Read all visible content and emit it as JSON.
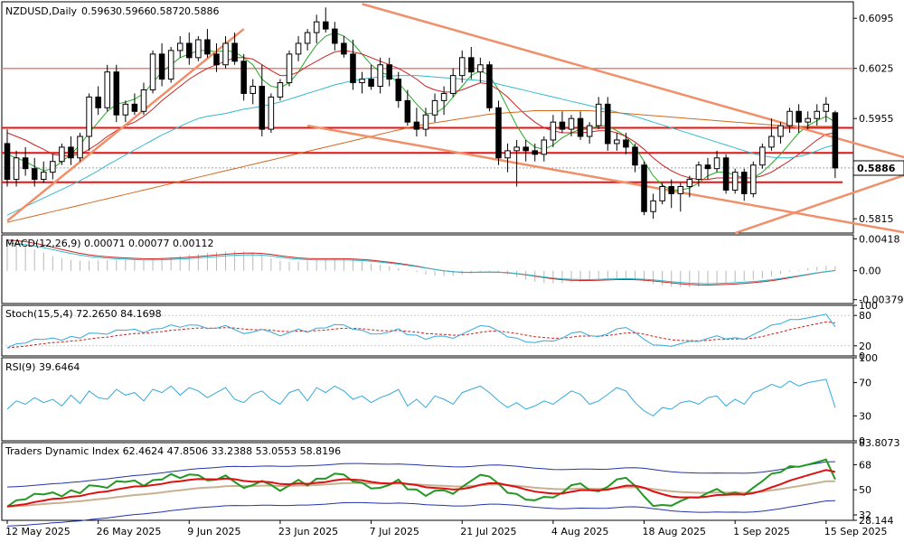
{
  "chart_data": {
    "type": "candlestick",
    "symbol_label": "NZDUSD,Daily",
    "ohlc_header": [
      "0.5963",
      "0.5966",
      "0.5872",
      "0.5886"
    ],
    "current_price": "0.5886",
    "main": {
      "y_ticks": [
        "0.6095",
        "0.6025",
        "0.5955",
        "0.5815"
      ],
      "y_tick_values": [
        0.6095,
        0.6025,
        0.5955,
        0.5815
      ],
      "ylim": [
        0.5795,
        0.6118
      ],
      "horizontal_levels": [
        0.6025,
        0.5942,
        0.5907,
        0.5866
      ],
      "candles": [
        [
          0.592,
          0.594,
          0.586,
          0.587
        ],
        [
          0.587,
          0.591,
          0.586,
          0.59
        ],
        [
          0.59,
          0.5915,
          0.5875,
          0.5885
        ],
        [
          0.5885,
          0.59,
          0.586,
          0.587
        ],
        [
          0.587,
          0.5895,
          0.5865,
          0.588
        ],
        [
          0.588,
          0.5905,
          0.587,
          0.5895
        ],
        [
          0.5895,
          0.592,
          0.589,
          0.5915
        ],
        [
          0.5915,
          0.593,
          0.589,
          0.59
        ],
        [
          0.59,
          0.5935,
          0.5895,
          0.593
        ],
        [
          0.593,
          0.599,
          0.591,
          0.5985
        ],
        [
          0.5985,
          0.6,
          0.596,
          0.597
        ],
        [
          0.597,
          0.603,
          0.5965,
          0.602
        ],
        [
          0.602,
          0.603,
          0.595,
          0.596
        ],
        [
          0.596,
          0.598,
          0.595,
          0.5975
        ],
        [
          0.5975,
          0.599,
          0.596,
          0.5965
        ],
        [
          0.5965,
          0.6005,
          0.596,
          0.5995
        ],
        [
          0.5995,
          0.605,
          0.599,
          0.6045
        ],
        [
          0.6045,
          0.606,
          0.6,
          0.601
        ],
        [
          0.601,
          0.6055,
          0.6005,
          0.605
        ],
        [
          0.605,
          0.607,
          0.604,
          0.606
        ],
        [
          0.606,
          0.6075,
          0.603,
          0.604
        ],
        [
          0.604,
          0.607,
          0.6035,
          0.6065
        ],
        [
          0.6065,
          0.608,
          0.604,
          0.6045
        ],
        [
          0.6045,
          0.606,
          0.602,
          0.603
        ],
        [
          0.603,
          0.607,
          0.6025,
          0.606
        ],
        [
          0.606,
          0.6075,
          0.603,
          0.6035
        ],
        [
          0.6035,
          0.6045,
          0.598,
          0.599
        ],
        [
          0.599,
          0.601,
          0.5975,
          0.6
        ],
        [
          0.6,
          0.603,
          0.593,
          0.594
        ],
        [
          0.594,
          0.599,
          0.5935,
          0.5985
        ],
        [
          0.5985,
          0.601,
          0.598,
          0.6005
        ],
        [
          0.6005,
          0.605,
          0.6,
          0.6045
        ],
        [
          0.6045,
          0.607,
          0.6035,
          0.606
        ],
        [
          0.606,
          0.608,
          0.605,
          0.6075
        ],
        [
          0.6075,
          0.61,
          0.606,
          0.609
        ],
        [
          0.609,
          0.611,
          0.6075,
          0.608
        ],
        [
          0.608,
          0.609,
          0.605,
          0.606
        ],
        [
          0.606,
          0.607,
          0.604,
          0.6045
        ],
        [
          0.6045,
          0.6065,
          0.5995,
          0.6005
        ],
        [
          0.6005,
          0.602,
          0.599,
          0.601
        ],
        [
          0.601,
          0.603,
          0.5995,
          0.6
        ],
        [
          0.6,
          0.604,
          0.599,
          0.603
        ],
        [
          0.603,
          0.604,
          0.6,
          0.601
        ],
        [
          0.601,
          0.602,
          0.597,
          0.598
        ],
        [
          0.598,
          0.5995,
          0.5945,
          0.595
        ],
        [
          0.595,
          0.597,
          0.593,
          0.594
        ],
        [
          0.594,
          0.597,
          0.593,
          0.596
        ],
        [
          0.596,
          0.599,
          0.595,
          0.598
        ],
        [
          0.598,
          0.6,
          0.596,
          0.599
        ],
        [
          0.599,
          0.6025,
          0.5985,
          0.6015
        ],
        [
          0.6015,
          0.605,
          0.6005,
          0.604
        ],
        [
          0.604,
          0.6055,
          0.601,
          0.602
        ],
        [
          0.602,
          0.604,
          0.6005,
          0.603
        ],
        [
          0.603,
          0.6035,
          0.5965,
          0.597
        ],
        [
          0.597,
          0.598,
          0.589,
          0.59
        ],
        [
          0.59,
          0.592,
          0.588,
          0.591
        ],
        [
          0.591,
          0.5925,
          0.586,
          0.5915
        ],
        [
          0.5915,
          0.5925,
          0.5895,
          0.591
        ],
        [
          0.591,
          0.592,
          0.5895,
          0.5905
        ],
        [
          0.5905,
          0.593,
          0.5895,
          0.5925
        ],
        [
          0.5925,
          0.596,
          0.5915,
          0.595
        ],
        [
          0.595,
          0.5965,
          0.5935,
          0.594
        ],
        [
          0.594,
          0.596,
          0.593,
          0.5955
        ],
        [
          0.5955,
          0.5965,
          0.5925,
          0.593
        ],
        [
          0.593,
          0.595,
          0.592,
          0.5945
        ],
        [
          0.5945,
          0.5985,
          0.594,
          0.5975
        ],
        [
          0.5975,
          0.5985,
          0.591,
          0.592
        ],
        [
          0.592,
          0.5935,
          0.591,
          0.5925
        ],
        [
          0.5925,
          0.5935,
          0.5905,
          0.5915
        ],
        [
          0.5915,
          0.592,
          0.588,
          0.589
        ],
        [
          0.589,
          0.5895,
          0.582,
          0.5825
        ],
        [
          0.5825,
          0.585,
          0.5815,
          0.584
        ],
        [
          0.584,
          0.5865,
          0.5835,
          0.586
        ],
        [
          0.586,
          0.587,
          0.583,
          0.585
        ],
        [
          0.585,
          0.5865,
          0.5825,
          0.586
        ],
        [
          0.586,
          0.5875,
          0.5845,
          0.587
        ],
        [
          0.587,
          0.5895,
          0.586,
          0.589
        ],
        [
          0.589,
          0.59,
          0.587,
          0.5885
        ],
        [
          0.5885,
          0.591,
          0.588,
          0.59
        ],
        [
          0.59,
          0.5905,
          0.585,
          0.5855
        ],
        [
          0.5855,
          0.5885,
          0.585,
          0.588
        ],
        [
          0.588,
          0.5885,
          0.584,
          0.585
        ],
        [
          0.585,
          0.5895,
          0.5845,
          0.589
        ],
        [
          0.589,
          0.592,
          0.5885,
          0.5915
        ],
        [
          0.5915,
          0.5955,
          0.591,
          0.593
        ],
        [
          0.593,
          0.595,
          0.592,
          0.5945
        ],
        [
          0.5945,
          0.597,
          0.5935,
          0.5965
        ],
        [
          0.5965,
          0.5975,
          0.5935,
          0.595
        ],
        [
          0.595,
          0.5965,
          0.594,
          0.5955
        ],
        [
          0.5955,
          0.5975,
          0.5945,
          0.5965
        ],
        [
          0.5965,
          0.5985,
          0.595,
          0.5975
        ],
        [
          0.5963,
          0.5966,
          0.5872,
          0.5886
        ]
      ],
      "moving_averages": [
        {
          "color": "#22aa22",
          "values": [
            0.5905,
            0.59,
            0.5895,
            0.5888,
            0.5882,
            0.5885,
            0.5895,
            0.5905,
            0.5918,
            0.5935,
            0.595,
            0.5965,
            0.5975,
            0.5978,
            0.5982,
            0.599,
            0.6005,
            0.602,
            0.603,
            0.604,
            0.6045,
            0.605,
            0.605,
            0.6048,
            0.605,
            0.6048,
            0.604,
            0.603,
            0.601,
            0.6,
            0.5998,
            0.6005,
            0.602,
            0.604,
            0.6058,
            0.607,
            0.6075,
            0.607,
            0.606,
            0.6045,
            0.603,
            0.602,
            0.6015,
            0.6005,
            0.599,
            0.5975,
            0.5962,
            0.5962,
            0.597,
            0.5985,
            0.6,
            0.6015,
            0.6022,
            0.6015,
            0.5995,
            0.597,
            0.5945,
            0.5925,
            0.5915,
            0.5912,
            0.5918,
            0.5928,
            0.5935,
            0.594,
            0.594,
            0.5945,
            0.5945,
            0.5938,
            0.593,
            0.5915,
            0.5895,
            0.5875,
            0.5862,
            0.5855,
            0.5855,
            0.5858,
            0.5865,
            0.5875,
            0.588,
            0.588,
            0.5876,
            0.5872,
            0.5872,
            0.588,
            0.5892,
            0.5905,
            0.592,
            0.5935,
            0.5945,
            0.5952,
            0.5958,
            0.595
          ]
        },
        {
          "color": "#cc2222",
          "values": [
            0.5935,
            0.593,
            0.5925,
            0.5918,
            0.5912,
            0.5905,
            0.5903,
            0.5903,
            0.5905,
            0.5912,
            0.592,
            0.593,
            0.5938,
            0.5945,
            0.595,
            0.5958,
            0.5968,
            0.598,
            0.599,
            0.6,
            0.601,
            0.6018,
            0.6025,
            0.603,
            0.6035,
            0.604,
            0.604,
            0.6038,
            0.603,
            0.6022,
            0.6015,
            0.6015,
            0.602,
            0.6028,
            0.6035,
            0.6042,
            0.6048,
            0.605,
            0.6048,
            0.6045,
            0.604,
            0.6035,
            0.603,
            0.6025,
            0.6018,
            0.601,
            0.6,
            0.5995,
            0.5992,
            0.5992,
            0.5995,
            0.6,
            0.6005,
            0.6003,
            0.5995,
            0.5985,
            0.5972,
            0.596,
            0.595,
            0.5942,
            0.5938,
            0.5935,
            0.5935,
            0.5935,
            0.5936,
            0.5938,
            0.5938,
            0.5935,
            0.593,
            0.5922,
            0.5912,
            0.59,
            0.589,
            0.5882,
            0.5876,
            0.5872,
            0.587,
            0.587,
            0.5872,
            0.5872,
            0.5872,
            0.5872,
            0.5872,
            0.5875,
            0.588,
            0.5888,
            0.5896,
            0.5905,
            0.5915,
            0.5925,
            0.5933,
            0.5935
          ]
        },
        {
          "color": "#33bbcc",
          "values": [
            0.582,
            0.5826,
            0.5832,
            0.5838,
            0.5844,
            0.585,
            0.5856,
            0.5862,
            0.5868,
            0.5875,
            0.5882,
            0.589,
            0.5897,
            0.5904,
            0.5911,
            0.5918,
            0.5925,
            0.5932,
            0.5938,
            0.5944,
            0.595,
            0.5955,
            0.5958,
            0.596,
            0.5962,
            0.5965,
            0.5968,
            0.597,
            0.5972,
            0.5975,
            0.5978,
            0.5982,
            0.5986,
            0.599,
            0.5994,
            0.5998,
            0.6002,
            0.6005,
            0.6008,
            0.601,
            0.6012,
            0.6013,
            0.6014,
            0.6015,
            0.6015,
            0.6015,
            0.6014,
            0.6013,
            0.6012,
            0.6011,
            0.601,
            0.6009,
            0.6008,
            0.6006,
            0.6003,
            0.6,
            0.5997,
            0.5994,
            0.5991,
            0.5988,
            0.5985,
            0.5982,
            0.5979,
            0.5976,
            0.5973,
            0.597,
            0.5967,
            0.5964,
            0.5961,
            0.5958,
            0.5954,
            0.595,
            0.5946,
            0.5942,
            0.5938,
            0.5934,
            0.593,
            0.5926,
            0.5922,
            0.5918,
            0.5914,
            0.591,
            0.5906,
            0.5903,
            0.5901,
            0.59,
            0.59,
            0.5902,
            0.5905,
            0.591,
            0.5915,
            0.5918
          ]
        },
        {
          "color": "#d2691e",
          "values": [
            0.581,
            0.5813,
            0.5816,
            0.5819,
            0.5822,
            0.5825,
            0.5828,
            0.5831,
            0.5834,
            0.5837,
            0.584,
            0.5843,
            0.5846,
            0.5849,
            0.5852,
            0.5855,
            0.5858,
            0.5861,
            0.5864,
            0.5867,
            0.587,
            0.5873,
            0.5876,
            0.5879,
            0.5882,
            0.5885,
            0.5888,
            0.5891,
            0.5894,
            0.5897,
            0.59,
            0.5903,
            0.5906,
            0.5909,
            0.5912,
            0.5915,
            0.5918,
            0.5921,
            0.5924,
            0.5927,
            0.593,
            0.5933,
            0.5936,
            0.5939,
            0.5942,
            0.5945,
            0.5947,
            0.5949,
            0.5951,
            0.5953,
            0.5955,
            0.5957,
            0.5959,
            0.5961,
            0.5962,
            0.5963,
            0.5964,
            0.5965,
            0.5966,
            0.5966,
            0.5966,
            0.5966,
            0.5966,
            0.5966,
            0.5966,
            0.5965,
            0.5964,
            0.5963,
            0.5962,
            0.5961,
            0.596,
            0.5959,
            0.5958,
            0.5957,
            0.5956,
            0.5955,
            0.5954,
            0.5953,
            0.5952,
            0.5951,
            0.595,
            0.5949,
            0.5948,
            0.5947,
            0.5946,
            0.5945,
            0.5944,
            0.5944,
            0.5944,
            0.5944,
            0.5944,
            0.5944
          ]
        }
      ],
      "trendlines": [
        {
          "from": [
            0,
            0.5812
          ],
          "to": [
            26,
            0.608
          ]
        },
        {
          "from": [
            39,
            0.6115
          ],
          "to": [
            103,
            0.5885
          ]
        },
        {
          "from": [
            33,
            0.5945
          ],
          "to": [
            99,
            0.5795
          ]
        },
        {
          "from": [
            80,
            0.5795
          ],
          "to": [
            103,
            0.5895
          ]
        }
      ]
    },
    "macd": {
      "label": "MACD(12,26,9) 0.00071 0.00077 0.00112",
      "y_ticks": [
        "0.00418",
        "0.00",
        "-0.00379"
      ],
      "y_tick_values": [
        0.00418,
        0.0,
        -0.00379
      ],
      "ylim": [
        -0.0043,
        0.0047
      ]
    },
    "stoch": {
      "label": "Stoch(15,5,4) 72.2650 84.1698",
      "y_ticks": [
        "100",
        "80",
        "20",
        "0"
      ],
      "y_tick_values": [
        100,
        80,
        20,
        0
      ],
      "ylim": [
        0,
        100
      ]
    },
    "rsi": {
      "label": "RSI(9) 39.6464",
      "y_ticks": [
        "100",
        "70",
        "30",
        "0"
      ],
      "y_tick_values": [
        100,
        70,
        30,
        0
      ],
      "ylim": [
        0,
        100
      ],
      "values": [
        38,
        48,
        44,
        52,
        46,
        50,
        42,
        55,
        45,
        60,
        52,
        50,
        62,
        55,
        58,
        48,
        62,
        58,
        66,
        55,
        64,
        60,
        52,
        58,
        64,
        50,
        46,
        56,
        60,
        50,
        44,
        58,
        62,
        48,
        64,
        58,
        66,
        60,
        50,
        54,
        46,
        52,
        56,
        62,
        42,
        50,
        40,
        54,
        50,
        44,
        58,
        62,
        66,
        58,
        48,
        40,
        46,
        38,
        42,
        48,
        44,
        52,
        60,
        56,
        44,
        48,
        56,
        64,
        60,
        46,
        36,
        30,
        40,
        38,
        46,
        48,
        44,
        52,
        54,
        42,
        50,
        44,
        58,
        62,
        68,
        64,
        72,
        66,
        70,
        72,
        74,
        40
      ]
    },
    "tdi": {
      "label": "Traders Dynamic Index 62.4624 47.8506 33.2388 53.0553 58.8196",
      "y_ticks": [
        "83.8073",
        "68",
        "50",
        "32",
        "28.144"
      ],
      "y_tick_values": [
        83.8073,
        68,
        50,
        32,
        28.144
      ],
      "ylim": [
        28.144,
        83.8073
      ]
    },
    "x_labels": [
      "12 May 2025",
      "26 May 2025",
      "9 Jun 2025",
      "23 Jun 2025",
      "7 Jul 2025",
      "21 Jul 2025",
      "4 Aug 2025",
      "18 Aug 2025",
      "1 Sep 2025",
      "15 Sep 2025"
    ],
    "x_label_index": [
      0,
      10,
      20,
      30,
      40,
      50,
      60,
      70,
      80,
      90
    ]
  }
}
